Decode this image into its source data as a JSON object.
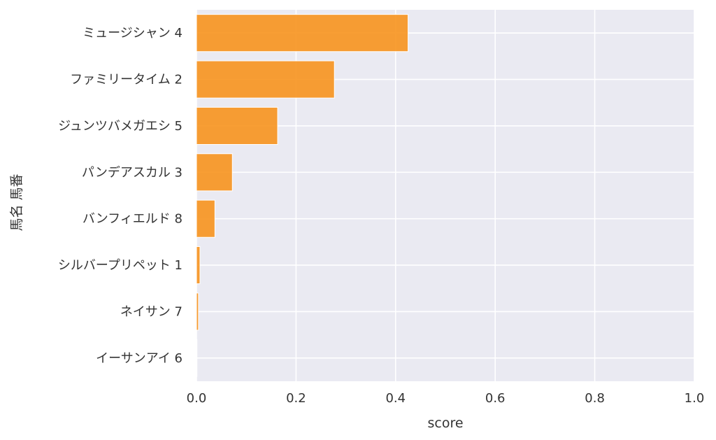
{
  "colors": {
    "plot_background": "#eaeaf2",
    "grid": "#ffffff",
    "bar": "#f7931e",
    "text": "#333333"
  },
  "chart_data": {
    "type": "bar",
    "orientation": "horizontal",
    "title": "",
    "xlabel": "score",
    "ylabel": "馬名 馬番",
    "xlim": [
      0,
      1
    ],
    "xticks": [
      "0.0",
      "0.2",
      "0.4",
      "0.6",
      "0.8",
      "1.0"
    ],
    "grid": true,
    "categories": [
      "ミュージシャン 4",
      "ファミリータイム 2",
      "ジュンツバメガエシ 5",
      "パンデアスカル 3",
      "バンフィエルド 8",
      "シルバープリペット 1",
      "ネイサン 7",
      "イーサンアイ 6"
    ],
    "values": [
      0.425,
      0.277,
      0.163,
      0.072,
      0.037,
      0.007,
      0.004,
      0.001
    ]
  }
}
